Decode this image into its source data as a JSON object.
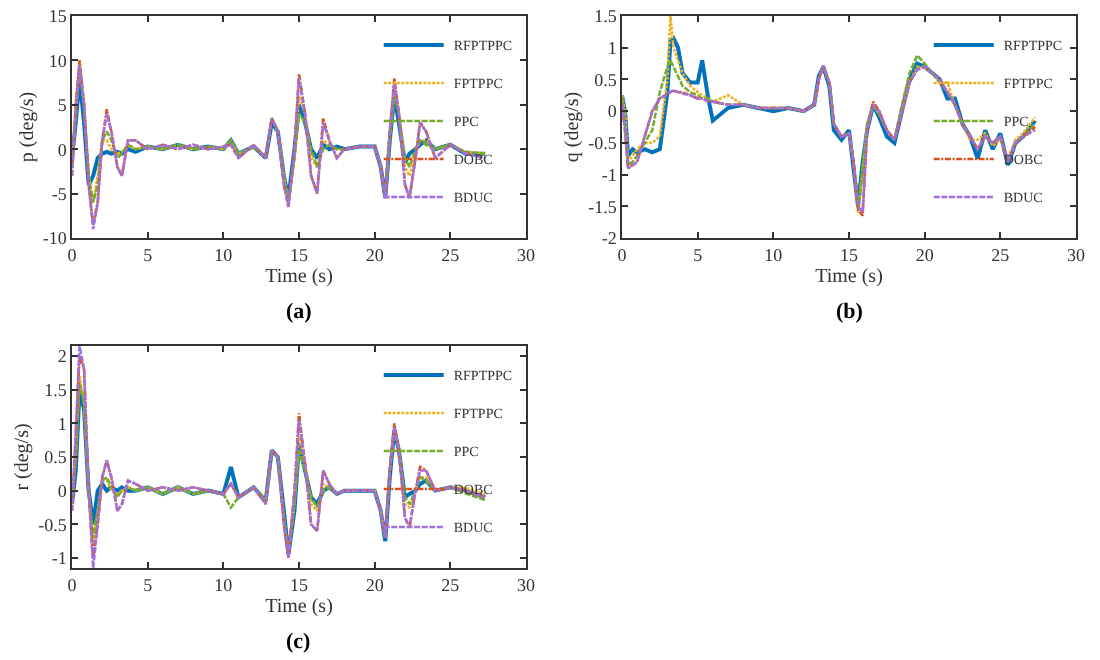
{
  "chart_data": [
    {
      "type": "line",
      "xlabel": "Time (s)",
      "ylabel": "p (deg/s)",
      "annotations": [
        "(a)"
      ],
      "legend": "top right",
      "xlim": [
        0,
        30
      ],
      "xticks": [
        0,
        5,
        10,
        15,
        20,
        25,
        30
      ],
      "ylim": [
        -10,
        15
      ],
      "yticks": [
        -10,
        -5,
        0,
        5,
        10,
        15
      ],
      "x": [
        0,
        0.25,
        0.5,
        0.8,
        1.1,
        1.4,
        1.7,
        2.0,
        2.3,
        2.6,
        3.0,
        3.3,
        3.7,
        4.2,
        5,
        6,
        7,
        8,
        9,
        10,
        10.5,
        11,
        12,
        12.8,
        13.2,
        13.6,
        14.0,
        14.3,
        14.7,
        15.0,
        15.4,
        15.8,
        16.2,
        16.6,
        17.0,
        17.5,
        18,
        19,
        20,
        20.4,
        20.7,
        21.0,
        21.3,
        21.6,
        22.0,
        22.3,
        22.7,
        23.0,
        23.4,
        24,
        25,
        26,
        27.3
      ],
      "series": [
        {
          "name": "RFPTPPC",
          "color": "#0072bd",
          "line_style": "solid",
          "values": [
            -1,
            3,
            8,
            3,
            -4,
            -3,
            -1,
            -0.5,
            -0.3,
            -0.5,
            -0.3,
            -0.5,
            0,
            -0.3,
            0.3,
            0,
            0.5,
            0,
            0.3,
            0,
            1,
            -0.5,
            0.3,
            -1,
            3,
            2,
            -3,
            -5.5,
            0,
            5,
            3,
            0,
            -1,
            0.5,
            0,
            0.3,
            0,
            0.3,
            0.3,
            -2,
            -5.5,
            1,
            6,
            3,
            -1.5,
            -0.5,
            0,
            0.5,
            1,
            0,
            0.5,
            -0.5,
            -0.5
          ]
        },
        {
          "name": "FPTPPC",
          "color": "#edb120",
          "line_style": "dotted",
          "values": [
            -2,
            5,
            10,
            5,
            -3,
            -6,
            -3,
            1,
            1,
            0,
            -0.5,
            -0.3,
            0.5,
            0,
            0.3,
            0,
            0.5,
            0,
            0.3,
            0,
            1,
            -0.5,
            0.3,
            -1,
            3.5,
            2,
            -3,
            -6,
            -1,
            6,
            4,
            -1,
            -2,
            1,
            0.5,
            0,
            0,
            0.3,
            0.3,
            -2,
            -5.5,
            2,
            7,
            4,
            -2,
            -3,
            -0.5,
            1,
            1,
            0,
            0.5,
            -0.3,
            -0.5
          ]
        },
        {
          "name": "PPC",
          "color": "#77ac30",
          "line_style": "dashed",
          "values": [
            -2,
            4,
            9,
            5,
            -3,
            -6,
            -4,
            1,
            2,
            1,
            -1,
            -0.5,
            0.5,
            0,
            0.3,
            0,
            0.5,
            0,
            0.3,
            0,
            1,
            -0.5,
            0.3,
            -1,
            3.5,
            2,
            -3,
            -6,
            -1,
            4,
            3,
            0,
            -2,
            0,
            0.5,
            0,
            0,
            0.3,
            0.3,
            -2,
            -5.5,
            1,
            6,
            4,
            -1,
            -2,
            0,
            1,
            0.5,
            0,
            0.5,
            -0.3,
            -0.5
          ]
        },
        {
          "name": "DOBC",
          "color": "#d95319",
          "line_style": "dashdot",
          "values": [
            -3,
            5,
            10,
            5,
            -4,
            -8.5,
            -6,
            1,
            4.5,
            2,
            -2,
            -3,
            1,
            1,
            0,
            0.5,
            0,
            0.5,
            0,
            0.3,
            0.5,
            -1,
            0.5,
            -1,
            3.5,
            2,
            -4,
            -6.5,
            0,
            8.5,
            4,
            -3,
            -5,
            3.5,
            1,
            -1,
            0,
            0.3,
            0.3,
            -2,
            -5.5,
            2,
            8,
            4,
            -4,
            -5.5,
            -1,
            3,
            2,
            -1,
            0.5,
            -0.5,
            -1
          ]
        },
        {
          "name": "BDUC",
          "color": "#a070e0",
          "line_style": "dashed",
          "values": [
            -3,
            4,
            9.5,
            5,
            -4,
            -9,
            -6,
            1,
            4,
            2,
            -2,
            -3,
            1,
            1,
            0,
            0.5,
            0,
            0.5,
            0,
            0.3,
            0.5,
            -1,
            0.5,
            -1,
            3.5,
            2,
            -4,
            -6.5,
            0,
            8,
            4,
            -3,
            -5,
            3,
            1,
            -1,
            0,
            0.3,
            0.3,
            -2,
            -5.5,
            2,
            7.5,
            4,
            -4,
            -5.5,
            -1,
            3,
            2,
            -1,
            0.5,
            -0.5,
            -1
          ]
        }
      ]
    },
    {
      "type": "line",
      "xlabel": "Time (s)",
      "ylabel": "q (deg/s)",
      "annotations": [
        "(b)"
      ],
      "legend": "top right",
      "xlim": [
        0,
        30
      ],
      "xticks": [
        0,
        5,
        10,
        15,
        20,
        25,
        30
      ],
      "ylim": [
        -2,
        1.5
      ],
      "yticks": [
        -2,
        -1.5,
        -1,
        -0.5,
        0,
        0.5,
        1,
        1.5
      ],
      "x": [
        0,
        0.2,
        0.4,
        0.7,
        1,
        1.5,
        2,
        2.5,
        3,
        3.2,
        3.4,
        3.7,
        4,
        4.5,
        5,
        5.3,
        5.7,
        6,
        7,
        8,
        9,
        10,
        11,
        12,
        12.7,
        13,
        13.3,
        13.7,
        14,
        14.5,
        15,
        15.3,
        15.6,
        15.9,
        16.2,
        16.6,
        17,
        17.5,
        18,
        18.5,
        19,
        19.5,
        20,
        20.5,
        21,
        21.5,
        22,
        22.5,
        23,
        23.5,
        24,
        24.5,
        25,
        25.5,
        26,
        26.5,
        27.3
      ],
      "series": [
        {
          "name": "RFPTPPC",
          "color": "#0072bd",
          "line_style": "solid",
          "values": [
            0.25,
            0,
            -0.7,
            -0.6,
            -0.65,
            -0.6,
            -0.65,
            -0.6,
            0.3,
            1.1,
            1.15,
            1,
            0.6,
            0.45,
            0.45,
            0.8,
            0.2,
            -0.15,
            0.05,
            0.1,
            0.05,
            0,
            0.05,
            0,
            0.1,
            0.55,
            0.7,
            0.4,
            -0.3,
            -0.45,
            -0.3,
            -0.9,
            -1.5,
            -0.8,
            -0.3,
            0.1,
            -0.1,
            -0.4,
            -0.5,
            0,
            0.5,
            0.75,
            0.7,
            0.6,
            0.5,
            0.2,
            0.2,
            -0.2,
            -0.4,
            -0.75,
            -0.3,
            -0.6,
            -0.35,
            -0.85,
            -0.5,
            -0.4,
            -0.15
          ]
        },
        {
          "name": "FPTPPC",
          "color": "#edb120",
          "line_style": "dotted",
          "values": [
            0.25,
            0,
            -0.8,
            -0.7,
            -0.6,
            -0.5,
            -0.5,
            -0.4,
            0.5,
            1.5,
            1,
            0.8,
            0.6,
            0.4,
            0.3,
            0.25,
            0.2,
            0.15,
            0.25,
            0.1,
            0.05,
            0.05,
            0.05,
            0,
            0.1,
            0.5,
            0.7,
            0.45,
            -0.2,
            -0.4,
            -0.35,
            -0.8,
            -1.6,
            -0.9,
            -0.2,
            0.1,
            -0.05,
            -0.3,
            -0.45,
            0,
            0.45,
            0.7,
            0.7,
            0.6,
            0.45,
            0.45,
            0.1,
            -0.2,
            -0.45,
            -0.45,
            -0.35,
            -0.55,
            -0.45,
            -0.75,
            -0.45,
            -0.35,
            -0.1
          ]
        },
        {
          "name": "PPC",
          "color": "#77ac30",
          "line_style": "dashed",
          "values": [
            0.2,
            -0.2,
            -0.85,
            -0.8,
            -0.7,
            -0.5,
            -0.3,
            0.3,
            0.7,
            0.8,
            0.7,
            0.55,
            0.4,
            0.3,
            0.25,
            0.2,
            0.2,
            0.15,
            0.1,
            0.1,
            0.05,
            0.05,
            0.05,
            0,
            0.1,
            0.5,
            0.7,
            0.45,
            -0.2,
            -0.4,
            -0.35,
            -0.8,
            -1.55,
            -0.9,
            -0.2,
            0.1,
            -0.05,
            -0.3,
            -0.45,
            0.1,
            0.6,
            0.88,
            0.75,
            0.6,
            0.45,
            0.3,
            0.1,
            -0.2,
            -0.4,
            -0.6,
            -0.4,
            -0.5,
            -0.4,
            -0.8,
            -0.5,
            -0.4,
            -0.2
          ]
        },
        {
          "name": "DOBC",
          "color": "#d95319",
          "line_style": "dashdot",
          "values": [
            0.1,
            -0.3,
            -0.9,
            -0.85,
            -0.8,
            -0.4,
            0,
            0.2,
            0.27,
            0.3,
            0.32,
            0.3,
            0.3,
            0.25,
            0.2,
            0.2,
            0.15,
            0.15,
            0.1,
            0.1,
            0.05,
            0.05,
            0.05,
            0,
            0.1,
            0.5,
            0.7,
            0.45,
            -0.2,
            -0.4,
            -0.35,
            -0.8,
            -1.55,
            -1.65,
            -0.3,
            0.15,
            0,
            -0.3,
            -0.45,
            0,
            0.45,
            0.65,
            0.7,
            0.6,
            0.5,
            0.3,
            0.1,
            -0.2,
            -0.4,
            -0.6,
            -0.4,
            -0.5,
            -0.4,
            -0.8,
            -0.5,
            -0.4,
            -0.25
          ]
        },
        {
          "name": "BDUC",
          "color": "#a070e0",
          "line_style": "dashed",
          "values": [
            0.1,
            -0.3,
            -0.9,
            -0.85,
            -0.8,
            -0.4,
            0,
            0.2,
            0.27,
            0.3,
            0.33,
            0.3,
            0.28,
            0.25,
            0.2,
            0.2,
            0.15,
            0.15,
            0.1,
            0.1,
            0.05,
            0.05,
            0.05,
            0,
            0.1,
            0.5,
            0.72,
            0.45,
            -0.2,
            -0.4,
            -0.35,
            -0.8,
            -1.5,
            -1.6,
            -0.3,
            0.1,
            0,
            -0.3,
            -0.45,
            0,
            0.45,
            0.65,
            0.7,
            0.6,
            0.5,
            0.3,
            0.1,
            -0.2,
            -0.4,
            -0.6,
            -0.4,
            -0.5,
            -0.4,
            -0.8,
            -0.5,
            -0.4,
            -0.3
          ]
        }
      ]
    },
    {
      "type": "line",
      "xlabel": "Time (s)",
      "ylabel": "r (deg/s)",
      "annotations": [
        "(c)"
      ],
      "legend": "top right",
      "xlim": [
        0,
        30
      ],
      "xticks": [
        0,
        5,
        10,
        15,
        20,
        25,
        30
      ],
      "ylim": [
        -1.15,
        2.15
      ],
      "yticks": [
        -1,
        -0.5,
        0,
        0.5,
        1,
        1.5,
        2
      ],
      "x": [
        0,
        0.25,
        0.5,
        0.8,
        1.1,
        1.4,
        1.7,
        2.0,
        2.3,
        2.6,
        3.0,
        3.3,
        3.7,
        4.2,
        5,
        6,
        7,
        8,
        9,
        10,
        10.5,
        11,
        12,
        12.8,
        13.2,
        13.6,
        14.0,
        14.3,
        14.7,
        15.0,
        15.4,
        15.8,
        16.2,
        16.6,
        17.0,
        17.5,
        18,
        19,
        20,
        20.4,
        20.7,
        21.0,
        21.3,
        21.6,
        22.0,
        22.3,
        22.7,
        23.0,
        23.4,
        24,
        25,
        26,
        27.3
      ],
      "series": [
        {
          "name": "RFPTPPC",
          "color": "#0072bd",
          "line_style": "solid",
          "values": [
            -0.2,
            0.3,
            1.5,
            1.2,
            0,
            -0.5,
            0,
            0.1,
            0,
            0.05,
            0,
            0.05,
            0,
            0,
            0.05,
            -0.05,
            0.05,
            -0.05,
            0,
            -0.05,
            0.35,
            -0.1,
            0.05,
            -0.15,
            0.6,
            0.5,
            -0.3,
            -0.95,
            -0.3,
            0.7,
            0.3,
            -0.1,
            -0.2,
            0,
            0.05,
            -0.05,
            0,
            0,
            0,
            -0.3,
            -0.75,
            0.2,
            0.9,
            0.6,
            -0.1,
            -0.05,
            0,
            0.1,
            0.15,
            0,
            0.05,
            0,
            -0.1
          ]
        },
        {
          "name": "FPTPPC",
          "color": "#edb120",
          "line_style": "dotted",
          "values": [
            -0.2,
            0.5,
            1.7,
            1.3,
            0,
            -0.8,
            -0.3,
            0.15,
            0.15,
            0,
            -0.05,
            0,
            0.05,
            0,
            0.05,
            -0.05,
            0.05,
            -0.05,
            0,
            -0.05,
            0.1,
            -0.1,
            0.05,
            -0.15,
            0.6,
            0.5,
            -0.4,
            -0.95,
            -0.2,
            0.8,
            0.4,
            -0.2,
            -0.3,
            0.1,
            0.05,
            -0.05,
            0,
            0,
            0,
            -0.3,
            -0.7,
            0.3,
            0.95,
            0.6,
            -0.2,
            -0.25,
            0,
            0.2,
            0.2,
            0,
            0.05,
            0.04,
            -0.05
          ]
        },
        {
          "name": "PPC",
          "color": "#77ac30",
          "line_style": "dashed",
          "values": [
            -0.2,
            0.5,
            1.6,
            1.3,
            0,
            -0.7,
            -0.3,
            0.15,
            0.2,
            0.05,
            -0.1,
            0,
            0.05,
            0,
            0.05,
            -0.05,
            0.05,
            -0.05,
            0,
            -0.05,
            -0.25,
            -0.1,
            0.05,
            -0.15,
            0.6,
            0.5,
            -0.4,
            -0.95,
            -0.2,
            0.6,
            0.3,
            -0.1,
            -0.25,
            0,
            0.05,
            -0.05,
            0,
            0,
            0,
            -0.3,
            -0.7,
            0.3,
            0.9,
            0.6,
            -0.1,
            -0.2,
            0,
            0.2,
            0.15,
            0,
            0.05,
            -0.04,
            -0.14
          ]
        },
        {
          "name": "DOBC",
          "color": "#d95319",
          "line_style": "dashdot",
          "values": [
            -0.3,
            0.8,
            2,
            1.8,
            0,
            -1,
            -0.5,
            0.2,
            0.45,
            0.2,
            -0.3,
            -0.2,
            0.15,
            0.1,
            0,
            0.05,
            0,
            0.05,
            0,
            -0.05,
            0.1,
            -0.1,
            0.05,
            -0.2,
            0.6,
            0.5,
            -0.5,
            -1,
            0,
            1.15,
            0.4,
            -0.5,
            -0.6,
            0.3,
            0.1,
            -0.05,
            0,
            0,
            0,
            -0.3,
            -0.7,
            0.3,
            1,
            0.6,
            -0.4,
            -0.55,
            0,
            0.35,
            0.3,
            0,
            0.05,
            0,
            -0.1
          ]
        },
        {
          "name": "BDUC",
          "color": "#a070e0",
          "line_style": "dashed",
          "values": [
            -0.3,
            0.9,
            2.15,
            1.8,
            0,
            -1.15,
            -0.5,
            0.2,
            0.45,
            0.2,
            -0.3,
            -0.2,
            0.15,
            0.1,
            0,
            0.05,
            0,
            0.05,
            0,
            -0.05,
            0.1,
            -0.1,
            0.05,
            -0.2,
            0.6,
            0.5,
            -0.5,
            -1,
            0,
            1.05,
            0.4,
            -0.5,
            -0.6,
            0.3,
            0.1,
            -0.05,
            0,
            0,
            0,
            -0.3,
            -0.7,
            0.3,
            0.95,
            0.6,
            -0.4,
            -0.55,
            0,
            0.3,
            0.3,
            0,
            0.05,
            0,
            -0.1
          ]
        }
      ]
    }
  ]
}
